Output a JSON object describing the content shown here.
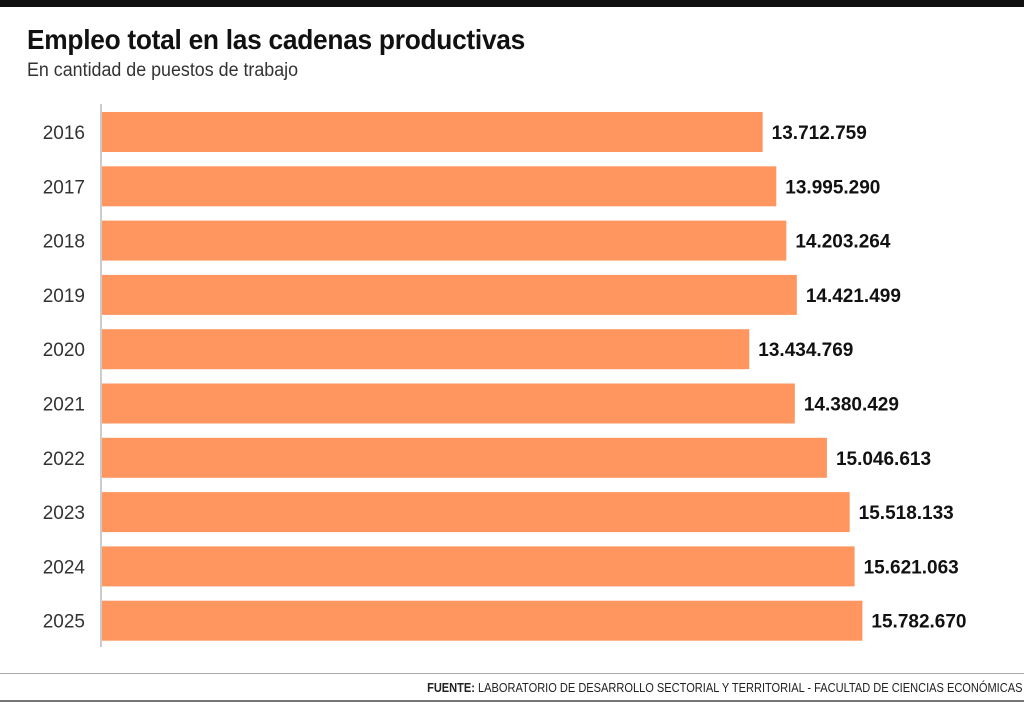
{
  "chart_data": {
    "type": "bar",
    "orientation": "horizontal",
    "title": "Empleo total en las cadenas productivas",
    "subtitle": "En cantidad de puestos de trabajo",
    "categories": [
      "2016",
      "2017",
      "2018",
      "2019",
      "2020",
      "2021",
      "2022",
      "2023",
      "2024",
      "2025"
    ],
    "values": [
      13712759,
      13995290,
      14203264,
      14421499,
      13434769,
      14380429,
      15046613,
      15518133,
      15621063,
      15782670
    ],
    "labels": [
      "13.712.759",
      "13.995.290",
      "14.203.264",
      "14.421.499",
      "13.434.769",
      "14.380.429",
      "15.046.613",
      "15.518.133",
      "15.621.063",
      "15.782.670"
    ],
    "xlabel": "",
    "ylabel": "",
    "grid": false,
    "legend": "none",
    "bar_color": "#FF9660"
  },
  "source": {
    "label": "FUENTE:",
    "text": " LABORATORIO DE DESARROLLO SECTORIAL Y TERRITORIAL - FACULTAD DE CIENCIAS ECONÓMICAS"
  }
}
